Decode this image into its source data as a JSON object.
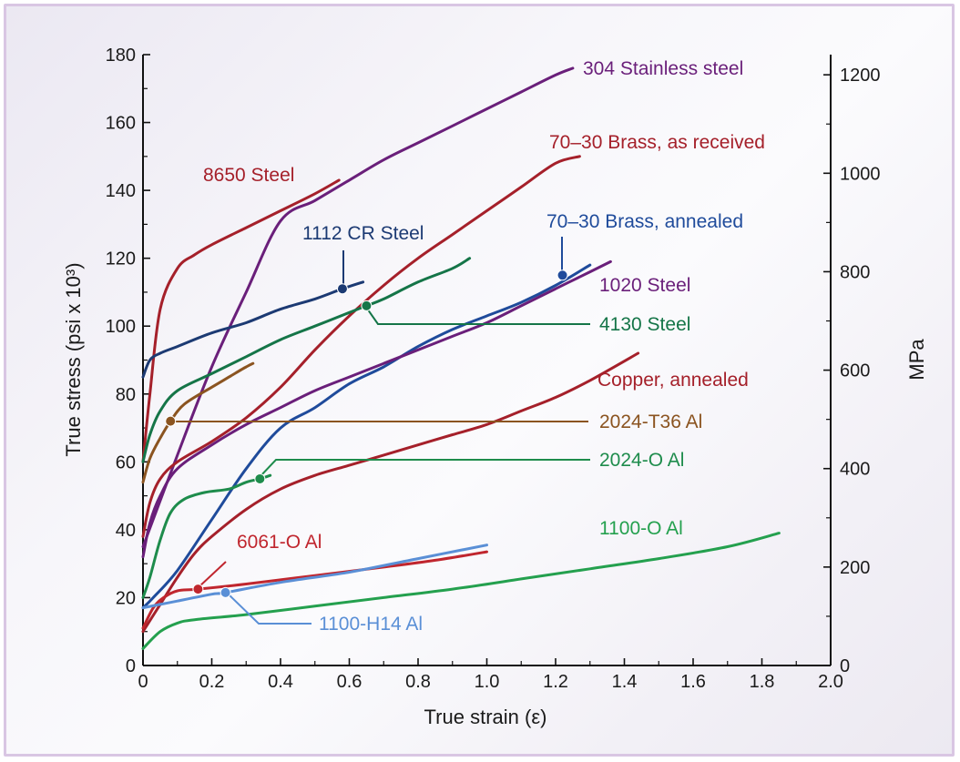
{
  "chart_data": {
    "type": "line",
    "xlabel": "True strain (ε)",
    "ylabel": "True stress (psi x 10³)",
    "y2label": "MPa",
    "xlim": [
      0,
      2.0
    ],
    "ylim": [
      0,
      180
    ],
    "y2lim": [
      0,
      1241
    ],
    "xticks": [
      "0",
      "0.2",
      "0.4",
      "0.6",
      "0.8",
      "1.0",
      "1.2",
      "1.4",
      "1.6",
      "1.8",
      "2.0"
    ],
    "yticks": [
      "0",
      "20",
      "40",
      "60",
      "80",
      "100",
      "120",
      "140",
      "160",
      "180"
    ],
    "y2ticks": [
      "0",
      "200",
      "400",
      "600",
      "800",
      "1000",
      "1200"
    ],
    "grid": false,
    "series": [
      {
        "name": "304 Stainless steel",
        "color": "#6a1f7a",
        "points": [
          [
            0.0,
            35
          ],
          [
            0.1,
            62
          ],
          [
            0.2,
            88
          ],
          [
            0.3,
            110
          ],
          [
            0.4,
            131
          ],
          [
            0.5,
            137
          ],
          [
            0.6,
            143
          ],
          [
            0.7,
            149
          ],
          [
            0.8,
            154
          ],
          [
            0.9,
            159
          ],
          [
            1.0,
            164
          ],
          [
            1.1,
            169
          ],
          [
            1.2,
            174
          ],
          [
            1.25,
            176
          ]
        ]
      },
      {
        "name": "70–30 Brass, as received",
        "color": "#a5202a",
        "points": [
          [
            0.0,
            38
          ],
          [
            0.02,
            48
          ],
          [
            0.05,
            55
          ],
          [
            0.1,
            60
          ],
          [
            0.2,
            66
          ],
          [
            0.3,
            73
          ],
          [
            0.4,
            82
          ],
          [
            0.5,
            93
          ],
          [
            0.6,
            103
          ],
          [
            0.7,
            112
          ],
          [
            0.8,
            120
          ],
          [
            0.9,
            127
          ],
          [
            1.0,
            134
          ],
          [
            1.1,
            141
          ],
          [
            1.2,
            148
          ],
          [
            1.27,
            150
          ]
        ]
      },
      {
        "name": "8650 Steel",
        "color": "#a5202a",
        "points": [
          [
            0.0,
            60
          ],
          [
            0.02,
            80
          ],
          [
            0.05,
            105
          ],
          [
            0.1,
            117
          ],
          [
            0.15,
            121
          ],
          [
            0.2,
            124
          ],
          [
            0.3,
            129
          ],
          [
            0.4,
            134
          ],
          [
            0.5,
            139
          ],
          [
            0.57,
            143
          ]
        ]
      },
      {
        "name": "1112 CR Steel",
        "color": "#1c3a73",
        "points": [
          [
            0.0,
            85
          ],
          [
            0.02,
            90
          ],
          [
            0.05,
            92
          ],
          [
            0.1,
            94
          ],
          [
            0.2,
            98
          ],
          [
            0.3,
            101
          ],
          [
            0.4,
            105
          ],
          [
            0.5,
            108
          ],
          [
            0.58,
            111
          ],
          [
            0.64,
            113
          ]
        ]
      },
      {
        "name": "70–30 Brass, annealed",
        "color": "#1f4b9b",
        "points": [
          [
            0.0,
            17
          ],
          [
            0.03,
            20
          ],
          [
            0.1,
            28
          ],
          [
            0.2,
            43
          ],
          [
            0.3,
            58
          ],
          [
            0.4,
            70
          ],
          [
            0.5,
            76
          ],
          [
            0.6,
            83
          ],
          [
            0.7,
            88
          ],
          [
            0.8,
            94
          ],
          [
            0.9,
            99
          ],
          [
            1.0,
            103
          ],
          [
            1.1,
            107
          ],
          [
            1.2,
            112
          ],
          [
            1.3,
            118
          ]
        ]
      },
      {
        "name": "1020 Steel",
        "color": "#6a1f7a",
        "points": [
          [
            0.0,
            32
          ],
          [
            0.02,
            42
          ],
          [
            0.05,
            50
          ],
          [
            0.1,
            58
          ],
          [
            0.2,
            65
          ],
          [
            0.3,
            71
          ],
          [
            0.4,
            76
          ],
          [
            0.5,
            81
          ],
          [
            0.6,
            85
          ],
          [
            0.7,
            89
          ],
          [
            0.8,
            93
          ],
          [
            0.9,
            97
          ],
          [
            1.0,
            101
          ],
          [
            1.1,
            106
          ],
          [
            1.2,
            111
          ],
          [
            1.3,
            116
          ],
          [
            1.36,
            119
          ]
        ]
      },
      {
        "name": "4130 Steel",
        "color": "#157548",
        "points": [
          [
            0.0,
            60
          ],
          [
            0.02,
            68
          ],
          [
            0.05,
            75
          ],
          [
            0.1,
            81
          ],
          [
            0.2,
            86
          ],
          [
            0.3,
            91
          ],
          [
            0.4,
            96
          ],
          [
            0.5,
            100
          ],
          [
            0.6,
            104
          ],
          [
            0.65,
            106
          ],
          [
            0.7,
            108
          ],
          [
            0.8,
            113
          ],
          [
            0.9,
            117
          ],
          [
            0.95,
            120
          ]
        ]
      },
      {
        "name": "Copper, annealed",
        "color": "#a5202a",
        "points": [
          [
            0.0,
            10
          ],
          [
            0.05,
            18
          ],
          [
            0.1,
            26
          ],
          [
            0.15,
            33
          ],
          [
            0.2,
            38
          ],
          [
            0.3,
            46
          ],
          [
            0.4,
            52
          ],
          [
            0.5,
            56
          ],
          [
            0.6,
            59
          ],
          [
            0.7,
            62
          ],
          [
            0.8,
            65
          ],
          [
            0.9,
            68
          ],
          [
            1.0,
            71
          ],
          [
            1.1,
            75
          ],
          [
            1.2,
            79
          ],
          [
            1.3,
            84
          ],
          [
            1.44,
            92
          ]
        ]
      },
      {
        "name": "2024-T36 Al",
        "color": "#8b5420",
        "points": [
          [
            0.0,
            54
          ],
          [
            0.02,
            61
          ],
          [
            0.05,
            67
          ],
          [
            0.08,
            72
          ],
          [
            0.12,
            77
          ],
          [
            0.2,
            82
          ],
          [
            0.25,
            85
          ],
          [
            0.3,
            88
          ],
          [
            0.32,
            89
          ]
        ]
      },
      {
        "name": "2024-O Al",
        "color": "#1e8c4c",
        "points": [
          [
            0.0,
            20
          ],
          [
            0.02,
            26
          ],
          [
            0.05,
            37
          ],
          [
            0.08,
            45
          ],
          [
            0.12,
            49
          ],
          [
            0.18,
            51
          ],
          [
            0.25,
            52
          ],
          [
            0.3,
            54
          ],
          [
            0.34,
            55
          ],
          [
            0.37,
            56
          ]
        ]
      },
      {
        "name": "1100-O Al",
        "color": "#24a04e",
        "points": [
          [
            0.0,
            5
          ],
          [
            0.05,
            10
          ],
          [
            0.1,
            12.5
          ],
          [
            0.15,
            13.5
          ],
          [
            0.3,
            15
          ],
          [
            0.5,
            17.5
          ],
          [
            0.7,
            20
          ],
          [
            0.9,
            22.5
          ],
          [
            1.1,
            25.5
          ],
          [
            1.3,
            28.5
          ],
          [
            1.5,
            31.5
          ],
          [
            1.7,
            35
          ],
          [
            1.85,
            39
          ]
        ]
      },
      {
        "name": "6061-O Al",
        "color": "#c0262e",
        "points": [
          [
            0.0,
            11
          ],
          [
            0.03,
            17
          ],
          [
            0.06,
            20
          ],
          [
            0.1,
            22
          ],
          [
            0.16,
            22.5
          ],
          [
            0.3,
            24
          ],
          [
            0.5,
            26.5
          ],
          [
            0.7,
            29
          ],
          [
            0.85,
            31
          ],
          [
            1.0,
            33.5
          ]
        ]
      },
      {
        "name": "1100-H14 Al",
        "color": "#5a8fd6",
        "points": [
          [
            0.0,
            17
          ],
          [
            0.05,
            18
          ],
          [
            0.1,
            19
          ],
          [
            0.2,
            21
          ],
          [
            0.24,
            21.5
          ],
          [
            0.4,
            24.5
          ],
          [
            0.6,
            27.5
          ],
          [
            0.8,
            31.5
          ],
          [
            1.0,
            35.5
          ]
        ]
      }
    ]
  }
}
